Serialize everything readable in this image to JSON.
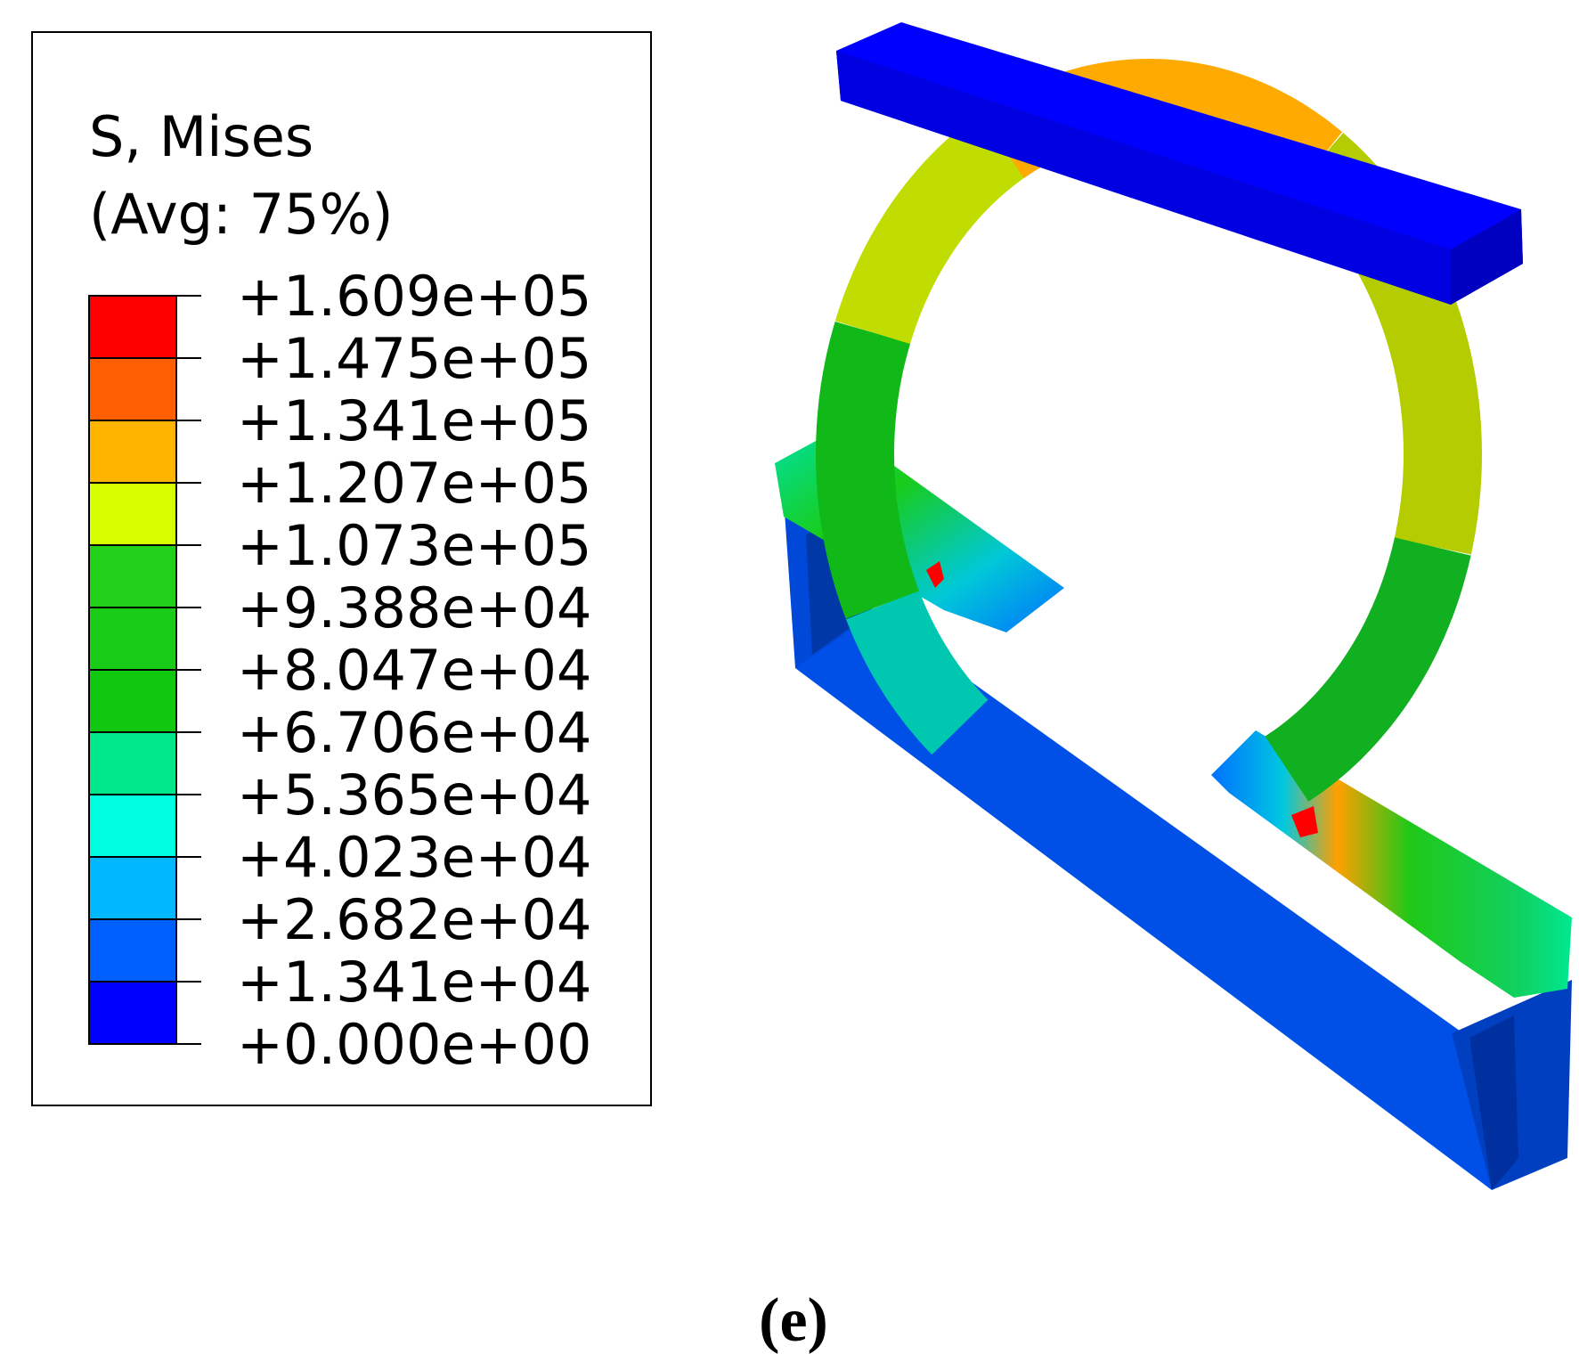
{
  "legend": {
    "title": "S, Mises",
    "subtitle": "(Avg: 75%)",
    "levels": [
      "+1.609e+05",
      "+1.475e+05",
      "+1.341e+05",
      "+1.207e+05",
      "+1.073e+05",
      "+9.388e+04",
      "+8.047e+04",
      "+6.706e+04",
      "+5.365e+04",
      "+4.023e+04",
      "+2.682e+04",
      "+1.341e+04",
      "+0.000e+00"
    ],
    "colors": [
      "#ff0000",
      "#ff5f00",
      "#ffb400",
      "#d8ff00",
      "#22d01a",
      "#18cc18",
      "#10c810",
      "#00e88a",
      "#00ffe0",
      "#00b8ff",
      "#0060ff",
      "#0000ff"
    ]
  },
  "caption": "(e)"
}
